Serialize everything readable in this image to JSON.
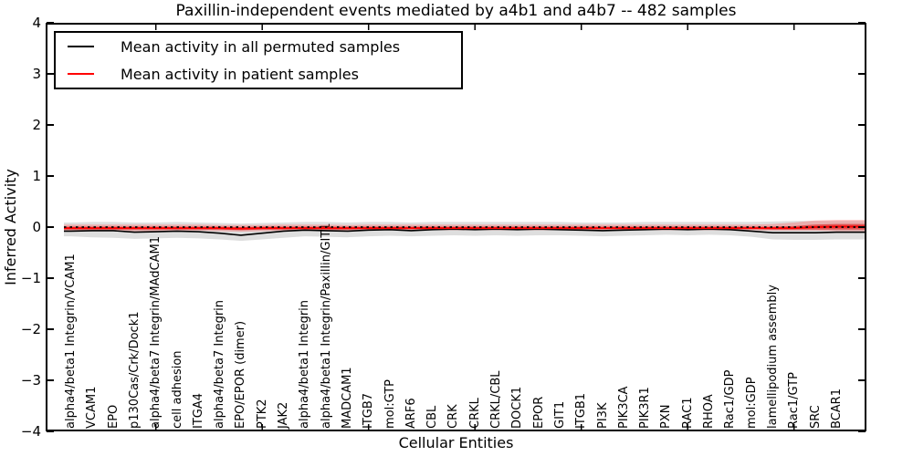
{
  "chart_data": {
    "type": "line",
    "title": "Paxillin-independent events mediated by a4b1 and a4b7 -- 482 samples",
    "xlabel": "Cellular Entities",
    "ylabel": "Inferred Activity",
    "ylim": [
      -4,
      4
    ],
    "yticks": [
      4,
      3,
      2,
      1,
      0,
      -1,
      -2,
      -3,
      -4
    ],
    "ytick_labels": [
      "4",
      "3",
      "2",
      "1",
      "0",
      "−1",
      "−2",
      "−3",
      "−4"
    ],
    "top_tick_indices": [
      4,
      9,
      14,
      19,
      24,
      29,
      34
    ],
    "legend_position": "upper left",
    "grid": false,
    "categories": [
      "alpha4/beta1 Integrin/VCAM1",
      "VCAM1",
      "EPO",
      "p130Cas/Crk/Dock1",
      "alpha4/beta7 Integrin/MAdCAM1",
      "cell adhesion",
      "ITGA4",
      "alpha4/beta7 Integrin",
      "EPO/EPOR (dimer)",
      "PTK2",
      "JAK2",
      "alpha4/beta1 Integrin",
      "alpha4/beta1 Integrin/Paxillin/GIT1",
      "MADCAM1",
      "ITGB7",
      "mol:GTP",
      "ARF6",
      "CBL",
      "CRK",
      "CRKL",
      "CRKL/CBL",
      "DOCK1",
      "EPOR",
      "GIT1",
      "ITGB1",
      "PI3K",
      "PIK3CA",
      "PIK3R1",
      "PXN",
      "RAC1",
      "RHOA",
      "Rac1/GDP",
      "mol:GDP",
      "lamellipodium assembly",
      "Rac1/GTP",
      "SRC",
      "BCAR1"
    ],
    "series": [
      {
        "name": "Mean activity in all permuted samples",
        "color": "#000000",
        "values": [
          -0.08,
          -0.07,
          -0.07,
          -0.1,
          -0.09,
          -0.08,
          -0.09,
          -0.12,
          -0.16,
          -0.12,
          -0.08,
          -0.06,
          -0.07,
          -0.08,
          -0.06,
          -0.05,
          -0.07,
          -0.05,
          -0.04,
          -0.05,
          -0.04,
          -0.05,
          -0.04,
          -0.05,
          -0.06,
          -0.07,
          -0.06,
          -0.05,
          -0.04,
          -0.05,
          -0.04,
          -0.05,
          -0.08,
          -0.11,
          -0.11,
          -0.11,
          -0.1
        ]
      },
      {
        "name": "Mean activity in patient samples",
        "color": "#ff0000",
        "values": [
          -0.02,
          -0.02,
          -0.02,
          -0.02,
          -0.02,
          -0.02,
          -0.02,
          -0.02,
          -0.03,
          -0.02,
          -0.02,
          -0.02,
          -0.02,
          -0.02,
          -0.02,
          -0.02,
          -0.02,
          -0.02,
          -0.02,
          -0.02,
          -0.02,
          -0.02,
          -0.02,
          -0.02,
          -0.02,
          -0.02,
          -0.02,
          -0.02,
          -0.02,
          -0.02,
          -0.02,
          -0.02,
          -0.02,
          -0.02,
          -0.02,
          0.0,
          0.01
        ]
      }
    ],
    "bands": [
      {
        "name": "permuted-std-band",
        "color": "rgba(0,0,0,0.13)",
        "upper": [
          0.09,
          0.1,
          0.1,
          0.09,
          0.09,
          0.1,
          0.09,
          0.08,
          0.07,
          0.08,
          0.09,
          0.1,
          0.1,
          0.09,
          0.1,
          0.1,
          0.09,
          0.1,
          0.1,
          0.1,
          0.1,
          0.1,
          0.1,
          0.1,
          0.09,
          0.09,
          0.09,
          0.1,
          0.1,
          0.1,
          0.1,
          0.1,
          0.1,
          0.11,
          0.12,
          0.12,
          0.12
        ],
        "lower": [
          -0.18,
          -0.2,
          -0.21,
          -0.23,
          -0.22,
          -0.21,
          -0.22,
          -0.24,
          -0.27,
          -0.24,
          -0.21,
          -0.18,
          -0.19,
          -0.2,
          -0.18,
          -0.17,
          -0.18,
          -0.17,
          -0.16,
          -0.17,
          -0.16,
          -0.17,
          -0.16,
          -0.16,
          -0.17,
          -0.18,
          -0.17,
          -0.16,
          -0.15,
          -0.16,
          -0.15,
          -0.16,
          -0.19,
          -0.24,
          -0.25,
          -0.25,
          -0.24
        ]
      },
      {
        "name": "patient-outer-band",
        "color": "rgba(255,60,60,0.30)",
        "upper": [
          0.05,
          0.05,
          0.05,
          0.05,
          0.05,
          0.05,
          0.05,
          0.04,
          0.04,
          0.04,
          0.05,
          0.05,
          0.05,
          0.04,
          0.05,
          0.05,
          0.05,
          0.05,
          0.05,
          0.05,
          0.05,
          0.05,
          0.05,
          0.05,
          0.05,
          0.05,
          0.05,
          0.05,
          0.05,
          0.05,
          0.05,
          0.05,
          0.05,
          0.06,
          0.09,
          0.13,
          0.14
        ],
        "lower": [
          -0.08,
          -0.07,
          -0.07,
          -0.08,
          -0.08,
          -0.07,
          -0.07,
          -0.08,
          -0.09,
          -0.08,
          -0.07,
          -0.06,
          -0.07,
          -0.07,
          -0.06,
          -0.06,
          -0.06,
          -0.06,
          -0.06,
          -0.06,
          -0.06,
          -0.06,
          -0.06,
          -0.06,
          -0.06,
          -0.06,
          -0.06,
          -0.06,
          -0.06,
          -0.06,
          -0.06,
          -0.06,
          -0.06,
          -0.07,
          -0.07,
          -0.07,
          -0.08
        ]
      },
      {
        "name": "patient-inner-band",
        "color": "rgba(220,25,25,0.60)",
        "upper": [
          0.01,
          0.01,
          0.01,
          0.01,
          0.01,
          0.01,
          0.01,
          0.01,
          0.0,
          0.01,
          0.01,
          0.01,
          0.01,
          0.01,
          0.01,
          0.01,
          0.01,
          0.01,
          0.01,
          0.01,
          0.01,
          0.01,
          0.01,
          0.01,
          0.01,
          0.01,
          0.01,
          0.01,
          0.01,
          0.01,
          0.01,
          0.01,
          0.01,
          0.01,
          0.02,
          0.05,
          0.06
        ],
        "lower": [
          -0.05,
          -0.05,
          -0.05,
          -0.05,
          -0.05,
          -0.05,
          -0.05,
          -0.05,
          -0.06,
          -0.05,
          -0.05,
          -0.04,
          -0.05,
          -0.05,
          -0.04,
          -0.04,
          -0.04,
          -0.04,
          -0.04,
          -0.04,
          -0.04,
          -0.04,
          -0.04,
          -0.04,
          -0.04,
          -0.04,
          -0.04,
          -0.04,
          -0.04,
          -0.04,
          -0.04,
          -0.04,
          -0.04,
          -0.05,
          -0.05,
          -0.05,
          -0.05
        ]
      }
    ],
    "zero_line": {
      "y": 0,
      "color": "#000000",
      "style": "dotted"
    }
  }
}
